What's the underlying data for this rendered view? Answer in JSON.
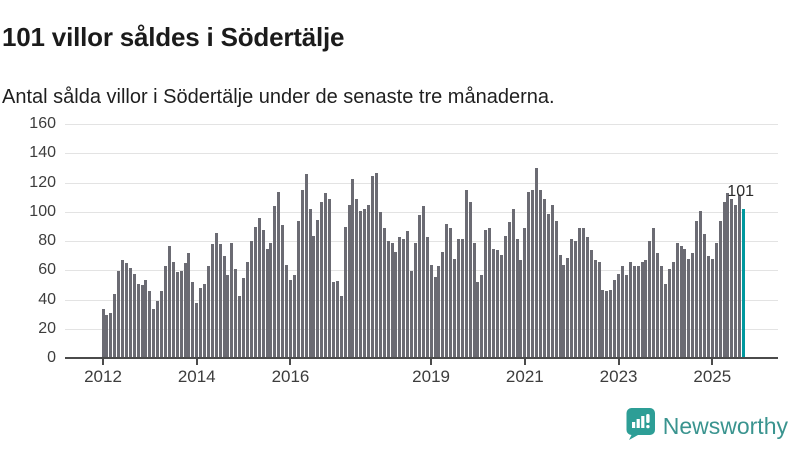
{
  "title": "101 villor såldes i Södertälje",
  "subtitle": "Antal sålda villor i Södertälje under de senaste tre månaderna.",
  "annotation_label": "101",
  "footer": {
    "brand": "Newsworthy"
  },
  "colors": {
    "bar": "#6b6b73",
    "highlight": "#00989e",
    "grid": "#e3e3e3",
    "axis": "#4b4b4b",
    "text": "#3d3d3d",
    "brand_icon": "#2d9e96",
    "brand_text": "#3a948f"
  },
  "chart_data": {
    "type": "bar",
    "title": "101 villor såldes i Södertälje",
    "subtitle": "Antal sålda villor i Södertälje under de senaste tre månaderna.",
    "xlabel": "",
    "ylabel": "",
    "ylim": [
      0,
      160
    ],
    "y_ticks": [
      0,
      20,
      40,
      60,
      80,
      100,
      120,
      140,
      160
    ],
    "grid": true,
    "x_unit": "month",
    "x_range": "Jan 2012 - Oct 2025",
    "x_ticks": [
      {
        "label": "2012",
        "index": 0
      },
      {
        "label": "2014",
        "index": 24
      },
      {
        "label": "2016",
        "index": 48
      },
      {
        "label": "2019",
        "index": 84
      },
      {
        "label": "2021",
        "index": 108
      },
      {
        "label": "2023",
        "index": 132
      },
      {
        "label": "2025",
        "index": 156
      }
    ],
    "values": [
      33,
      29,
      30,
      43,
      59,
      66,
      64,
      61,
      57,
      50,
      49,
      53,
      45,
      33,
      38,
      45,
      62,
      76,
      65,
      58,
      59,
      64,
      71,
      51,
      37,
      47,
      50,
      62,
      77,
      85,
      77,
      69,
      56,
      78,
      60,
      42,
      54,
      65,
      79,
      89,
      95,
      87,
      74,
      78,
      103,
      113,
      90,
      63,
      53,
      56,
      93,
      114,
      125,
      101,
      83,
      94,
      106,
      112,
      108,
      51,
      52,
      42,
      89,
      104,
      122,
      108,
      100,
      101,
      104,
      124,
      126,
      99,
      88,
      79,
      78,
      72,
      82,
      81,
      86,
      59,
      78,
      97,
      103,
      82,
      63,
      55,
      62,
      72,
      91,
      88,
      67,
      81,
      81,
      114,
      106,
      78,
      51,
      56,
      87,
      88,
      74,
      73,
      70,
      83,
      92,
      101,
      81,
      66,
      88,
      113,
      114,
      129,
      114,
      108,
      98,
      104,
      93,
      70,
      63,
      68,
      81,
      79,
      88,
      88,
      82,
      73,
      66,
      65,
      46,
      45,
      46,
      53,
      57,
      62,
      56,
      65,
      62,
      62,
      65,
      66,
      79,
      88,
      71,
      62,
      50,
      60,
      65,
      78,
      76,
      74,
      67,
      71,
      93,
      100,
      84,
      69,
      67,
      78,
      93,
      106,
      112,
      108,
      104,
      111,
      101
    ],
    "highlight_last": true,
    "last_value_label": "101",
    "legend": []
  }
}
